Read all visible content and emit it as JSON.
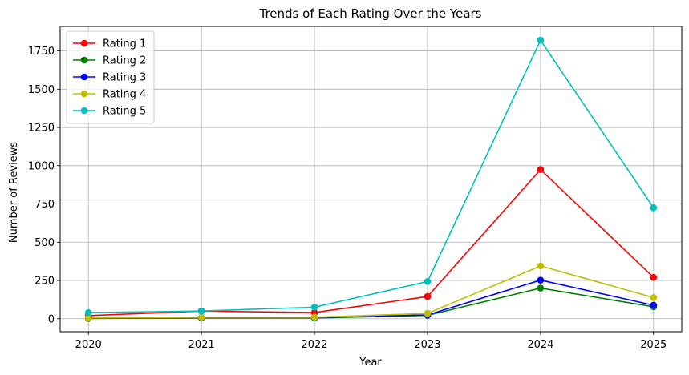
{
  "chart_data": {
    "type": "line",
    "title": "Trends of Each Rating Over the Years",
    "xlabel": "Year",
    "ylabel": "Number of Reviews",
    "x": [
      2020,
      2021,
      2022,
      2023,
      2024,
      2025
    ],
    "xlim": [
      2019.75,
      2025.25
    ],
    "ylim": [
      -85,
      1910
    ],
    "yticks": [
      0,
      250,
      500,
      750,
      1000,
      1250,
      1500,
      1750
    ],
    "grid": true,
    "legend_position": "top-left",
    "series": [
      {
        "name": "Rating 1",
        "color": "#ff0000",
        "values": [
          20,
          50,
          40,
          145,
          975,
          270
        ]
      },
      {
        "name": "Rating 2",
        "color": "#008000",
        "values": [
          2,
          5,
          5,
          22,
          200,
          78
        ]
      },
      {
        "name": "Rating 3",
        "color": "#0000ff",
        "values": [
          3,
          8,
          8,
          25,
          252,
          88
        ]
      },
      {
        "name": "Rating 4",
        "color": "#bfbf00",
        "values": [
          5,
          10,
          10,
          35,
          345,
          138
        ]
      },
      {
        "name": "Rating 5",
        "color": "#00bfbf",
        "values": [
          40,
          50,
          75,
          243,
          1820,
          725
        ]
      }
    ]
  }
}
